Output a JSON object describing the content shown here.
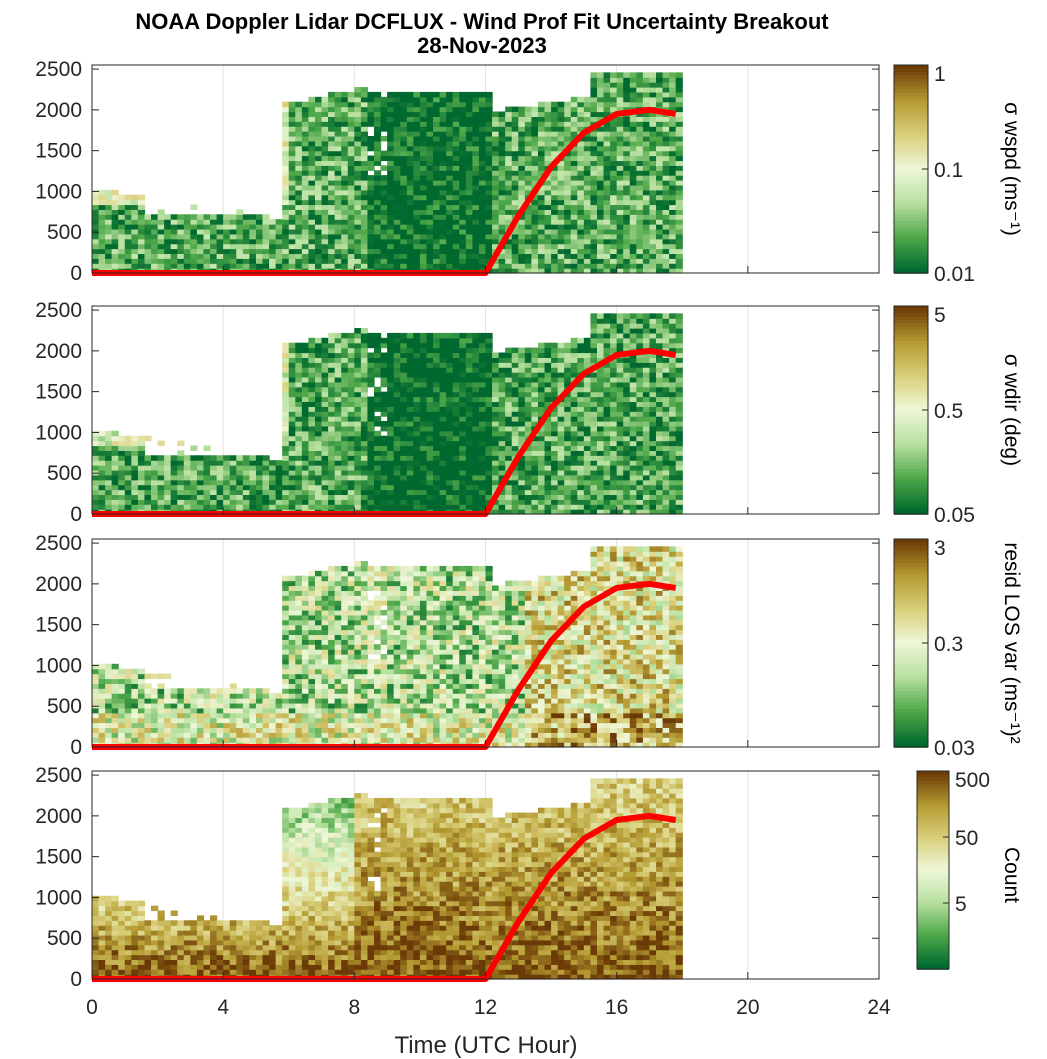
{
  "figure": {
    "title_line1": "NOAA Doppler Lidar DCFLUX - Wind Prof Fit Uncertainty Breakout",
    "title_line2": "28-Nov-2023",
    "xlabel": "Time (UTC Hour)",
    "xlim": [
      0,
      24
    ],
    "xticks": [
      "0",
      "4",
      "8",
      "12",
      "16",
      "20",
      "24"
    ]
  },
  "colors": {
    "dark_green": "#00692f",
    "mid_green": "#4fa84a",
    "light_green": "#b8e0a0",
    "pale": "#eef7d8",
    "light_tan": "#d9cf7a",
    "olive": "#b49a32",
    "dark_brown": "#6b3a06",
    "red_line": "#ff0000"
  },
  "chart_data": [
    {
      "type": "heatmap",
      "name": "panel-wspd",
      "ylim": [
        0,
        2550
      ],
      "yticks": [
        "0",
        "500",
        "1000",
        "1500",
        "2000",
        "2500"
      ],
      "colorbar": {
        "label": "σ wspd (ms⁻¹)",
        "scale": "log",
        "range": [
          0.01,
          1
        ],
        "ticks": [
          "1",
          "0.1",
          "0.01"
        ]
      },
      "bias": -0.35,
      "red_line": {
        "x": [
          0,
          12,
          13,
          14,
          15,
          16,
          17,
          17.8
        ],
        "y": [
          0,
          0,
          700,
          1300,
          1720,
          1950,
          2000,
          1950
        ]
      }
    },
    {
      "type": "heatmap",
      "name": "panel-wdir",
      "ylim": [
        0,
        2550
      ],
      "yticks": [
        "0",
        "500",
        "1000",
        "1500",
        "2000",
        "2500"
      ],
      "colorbar": {
        "label": "σ wdir (deg)",
        "scale": "log",
        "range": [
          0.05,
          5
        ],
        "ticks": [
          "5",
          "0.5",
          "0.05"
        ]
      },
      "bias": -0.45,
      "red_line": {
        "x": [
          0,
          12,
          13,
          14,
          15,
          16,
          17,
          17.8
        ],
        "y": [
          0,
          0,
          700,
          1300,
          1720,
          1950,
          2000,
          1950
        ]
      }
    },
    {
      "type": "heatmap",
      "name": "panel-resid",
      "ylim": [
        0,
        2550
      ],
      "yticks": [
        "0",
        "500",
        "1000",
        "1500",
        "2000",
        "2500"
      ],
      "colorbar": {
        "label": "resid LOS var (ms⁻¹)²",
        "scale": "log",
        "range": [
          0.03,
          3
        ],
        "ticks": [
          "3",
          "0.3",
          "0.03"
        ]
      },
      "bias": 0.05,
      "red_line": {
        "x": [
          0,
          12,
          13,
          14,
          15,
          16,
          17,
          17.8
        ],
        "y": [
          0,
          0,
          700,
          1300,
          1720,
          1950,
          2000,
          1950
        ]
      }
    },
    {
      "type": "heatmap",
      "name": "panel-count",
      "ylim": [
        0,
        2550
      ],
      "yticks": [
        "0",
        "500",
        "1000",
        "1500",
        "2000",
        "2500"
      ],
      "colorbar": {
        "label": "Count",
        "scale": "log",
        "range": [
          0.5,
          500
        ],
        "ticks": [
          "500",
          "50",
          "5"
        ]
      },
      "bias": 0.55,
      "red_line": {
        "x": [
          0,
          12,
          13,
          14,
          15,
          16,
          17,
          17.8
        ],
        "y": [
          0,
          0,
          700,
          1300,
          1720,
          1950,
          2000,
          1950
        ]
      }
    }
  ]
}
